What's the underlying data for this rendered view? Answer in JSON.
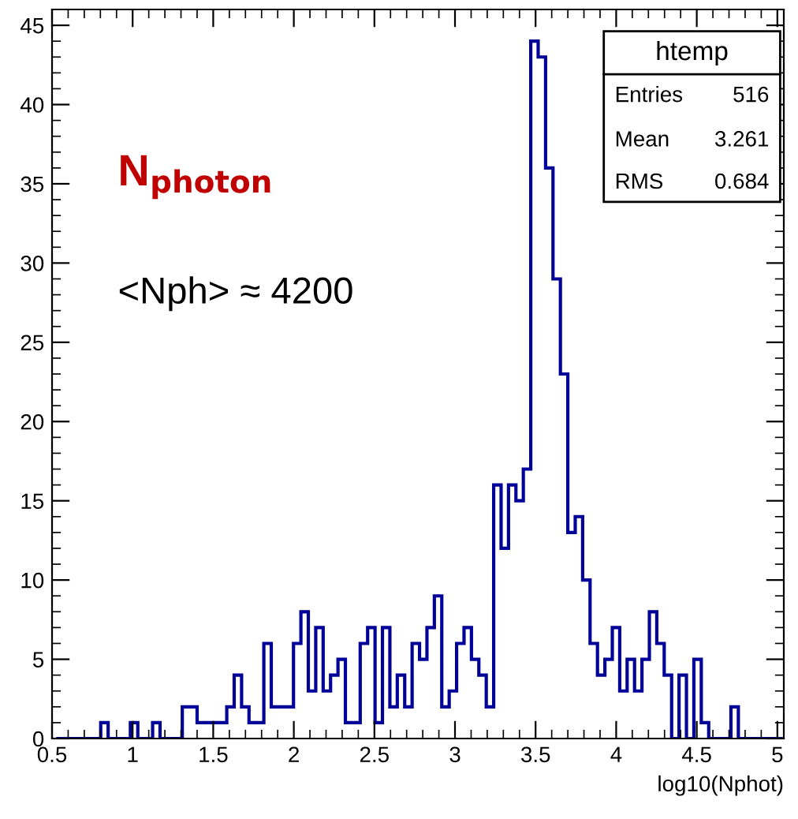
{
  "chart_data": {
    "type": "histogram",
    "xlabel": "log10(Nphot)",
    "color": "#000099",
    "bins": [
      0.526,
      0.572,
      0.618,
      0.664,
      0.71,
      0.756,
      0.802,
      0.848,
      0.894,
      0.94,
      0.986,
      1.032,
      1.078,
      1.124,
      1.17,
      1.216,
      1.262,
      1.308,
      1.354,
      1.4,
      1.446,
      1.492,
      1.538,
      1.584,
      1.63,
      1.676,
      1.722,
      1.768,
      1.814,
      1.86,
      1.906,
      1.952,
      1.998,
      2.044,
      2.09,
      2.136,
      2.182,
      2.228,
      2.274,
      2.32,
      2.366,
      2.412,
      2.458,
      2.504,
      2.55,
      2.596,
      2.642,
      2.688,
      2.734,
      2.78,
      2.826,
      2.872,
      2.918,
      2.964,
      3.01,
      3.056,
      3.102,
      3.148,
      3.194,
      3.24,
      3.286,
      3.332,
      3.378,
      3.424,
      3.47,
      3.516,
      3.562,
      3.608,
      3.654,
      3.7,
      3.746,
      3.792,
      3.838,
      3.884,
      3.93,
      3.976,
      4.022,
      4.068,
      4.114,
      4.16,
      4.206,
      4.252,
      4.298,
      4.344,
      4.39,
      4.436,
      4.482,
      4.528,
      4.574,
      4.62,
      4.666,
      4.712,
      4.758,
      4.804,
      4.85,
      4.896,
      4.942,
      4.988,
      5.034
    ],
    "values": [
      0,
      0,
      0,
      0,
      0,
      0,
      1,
      0,
      0,
      0,
      1,
      0,
      0,
      1,
      0,
      0,
      0,
      2,
      2,
      1,
      1,
      1,
      1,
      2,
      4,
      2,
      1,
      1,
      6,
      2,
      2,
      2,
      6,
      8,
      3,
      7,
      3,
      4,
      5,
      1,
      1,
      6,
      7,
      1,
      7,
      2,
      4,
      2,
      6,
      5,
      7,
      9,
      2,
      3,
      6,
      7,
      5,
      4,
      2,
      16,
      12,
      16,
      15,
      17,
      44,
      43,
      36,
      29,
      23,
      13,
      14,
      10,
      6,
      4,
      5,
      7,
      3,
      5,
      3,
      5,
      8,
      6,
      4,
      0,
      4,
      0,
      5,
      1,
      0,
      0,
      0,
      2,
      0,
      0,
      0,
      0,
      0,
      0
    ],
    "xlim": [
      0.5,
      5.04
    ],
    "ylim": [
      0,
      46
    ],
    "xticks": [
      0.5,
      1,
      1.5,
      2,
      2.5,
      3,
      3.5,
      4,
      4.5,
      5
    ],
    "yticks": [
      0,
      5,
      10,
      15,
      20,
      25,
      30,
      35,
      40,
      45
    ],
    "grid": false,
    "annotations": [
      "N$_{photon}$",
      "<Nph> ≈ 4200",
      "htemp",
      "Entries",
      "516",
      "Mean",
      "3.261",
      "RMS",
      "0.684"
    ]
  }
}
